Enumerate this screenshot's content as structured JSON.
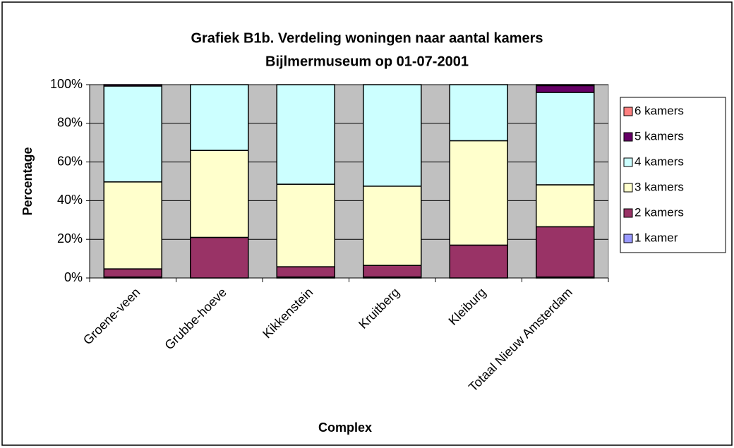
{
  "chart_data": {
    "type": "stacked_bar",
    "title": "Grafiek B1b. Verdeling woningen naar aantal kamers",
    "subtitle": "Bijlmermuseum op 01-07-2001",
    "x_label": "Complex",
    "y_label": "Percentage",
    "categories": [
      "Groene-veen",
      "Grubbe-hoeve",
      "Kikkenstein",
      "Kruitberg",
      "Kleiburg",
      "Totaal Nieuw Amsterdam"
    ],
    "series": [
      {
        "name": "1 kamer",
        "color": "#9999ff",
        "values": [
          0.5,
          0,
          0.5,
          0.5,
          0,
          0.5
        ]
      },
      {
        "name": "2 kamers",
        "color": "#993366",
        "values": [
          4.2,
          21,
          5.3,
          6,
          17,
          26
        ]
      },
      {
        "name": "3 kamers",
        "color": "#ffffcc",
        "values": [
          45,
          45,
          42.7,
          41,
          54,
          21.7
        ]
      },
      {
        "name": "4 kamers",
        "color": "#ccffff",
        "values": [
          49.6,
          34,
          51.5,
          52.5,
          29,
          47.8
        ]
      },
      {
        "name": "5 kamers",
        "color": "#660066",
        "values": [
          0.7,
          0,
          0,
          0,
          0,
          3.5
        ]
      },
      {
        "name": "6 kamers",
        "color": "#ff8080",
        "values": [
          0,
          0,
          0,
          0,
          0,
          0.5
        ]
      }
    ],
    "ylim": [
      0,
      100
    ],
    "yticks": [
      {
        "value": 0,
        "label": "0%"
      },
      {
        "value": 20,
        "label": "20%"
      },
      {
        "value": 40,
        "label": "40%"
      },
      {
        "value": 60,
        "label": "60%"
      },
      {
        "value": 80,
        "label": "80%"
      },
      {
        "value": 100,
        "label": "100%"
      }
    ],
    "grid": true,
    "plot_background": "#c0c0c0",
    "legend": "right"
  }
}
